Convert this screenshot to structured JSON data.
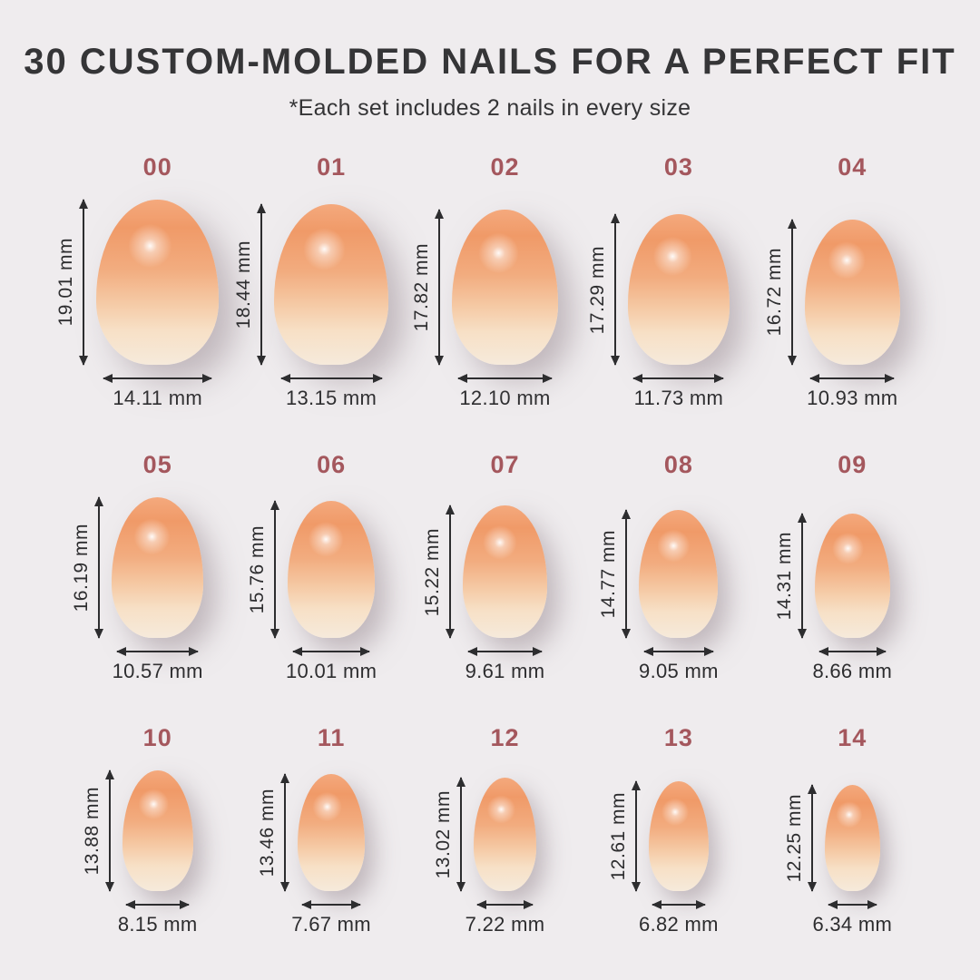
{
  "header": {
    "title": "30 CUSTOM-MOLDED NAILS FOR A PERFECT FIT",
    "subtitle": "*Each set includes 2 nails in every size"
  },
  "units": "mm",
  "sizes": [
    {
      "label": "00",
      "height_mm": 19.01,
      "width_mm": 14.11,
      "height_label": "19.01 mm",
      "width_label": "14.11 mm"
    },
    {
      "label": "01",
      "height_mm": 18.44,
      "width_mm": 13.15,
      "height_label": "18.44 mm",
      "width_label": "13.15 mm"
    },
    {
      "label": "02",
      "height_mm": 17.82,
      "width_mm": 12.1,
      "height_label": "17.82 mm",
      "width_label": "12.10 mm"
    },
    {
      "label": "03",
      "height_mm": 17.29,
      "width_mm": 11.73,
      "height_label": "17.29 mm",
      "width_label": "11.73 mm"
    },
    {
      "label": "04",
      "height_mm": 16.72,
      "width_mm": 10.93,
      "height_label": "16.72 mm",
      "width_label": "10.93 mm"
    },
    {
      "label": "05",
      "height_mm": 16.19,
      "width_mm": 10.57,
      "height_label": "16.19 mm",
      "width_label": "10.57 mm"
    },
    {
      "label": "06",
      "height_mm": 15.76,
      "width_mm": 10.01,
      "height_label": "15.76 mm",
      "width_label": "10.01 mm"
    },
    {
      "label": "07",
      "height_mm": 15.22,
      "width_mm": 9.61,
      "height_label": "15.22 mm",
      "width_label": "9.61 mm"
    },
    {
      "label": "08",
      "height_mm": 14.77,
      "width_mm": 9.05,
      "height_label": "14.77 mm",
      "width_label": "9.05 mm"
    },
    {
      "label": "09",
      "height_mm": 14.31,
      "width_mm": 8.66,
      "height_label": "14.31 mm",
      "width_label": "8.66 mm"
    },
    {
      "label": "10",
      "height_mm": 13.88,
      "width_mm": 8.15,
      "height_label": "13.88 mm",
      "width_label": "8.15 mm"
    },
    {
      "label": "11",
      "height_mm": 13.46,
      "width_mm": 7.67,
      "height_label": "13.46 mm",
      "width_label": "7.67 mm"
    },
    {
      "label": "12",
      "height_mm": 13.02,
      "width_mm": 7.22,
      "height_label": "13.02 mm",
      "width_label": "7.22 mm"
    },
    {
      "label": "13",
      "height_mm": 12.61,
      "width_mm": 6.82,
      "height_label": "12.61 mm",
      "width_label": "6.82 mm"
    },
    {
      "label": "14",
      "height_mm": 12.25,
      "width_mm": 6.34,
      "height_label": "12.25 mm",
      "width_label": "6.34 mm"
    }
  ],
  "colors": {
    "background": "#EFECEE",
    "title": "#353537",
    "subtitle": "#343436",
    "size_label": "#A4575D",
    "measure": "#2D2D2F",
    "nail_top_edge": "#F4A97D",
    "nail_top": "#F09A68",
    "nail_mid": "#F2AC7F",
    "nail_lower": "#F5C9A4",
    "nail_base": "#F7E0C6",
    "nail_bottom": "#F6EADB",
    "shadow": "rgba(148,131,139,0.50)"
  }
}
